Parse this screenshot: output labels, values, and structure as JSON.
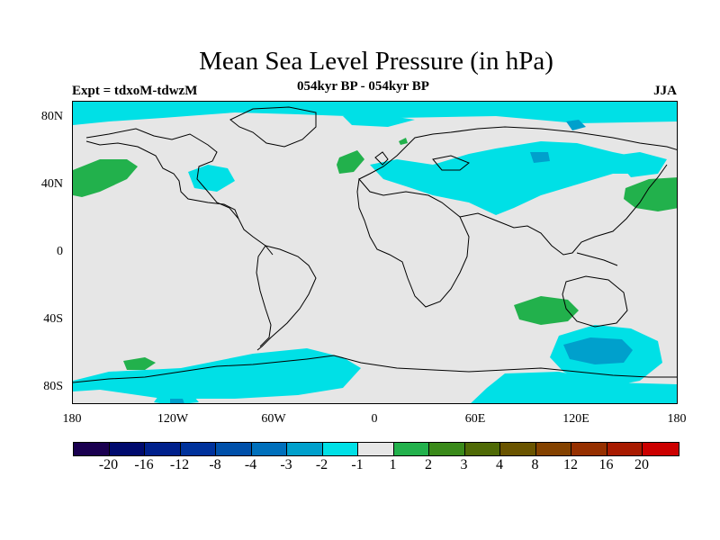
{
  "title": "Mean Sea Level Pressure (in hPa)",
  "subtitle": "054kyr BP - 054kyr BP",
  "experiment": "Expt = tdxoM-tdwzM",
  "season": "JJA",
  "lat_labels": [
    "80N",
    "40N",
    "0",
    "40S",
    "80S"
  ],
  "lon_labels": [
    "180",
    "120W",
    "60W",
    "0",
    "60E",
    "120E",
    "180"
  ],
  "colorbar": {
    "colors": [
      "#1a0050",
      "#000a6e",
      "#00208c",
      "#00329c",
      "#0050aa",
      "#0070bc",
      "#00a0cc",
      "#00e0e6",
      "#e6e6e6",
      "#22b14c",
      "#3a8a1a",
      "#4f6a06",
      "#6a5400",
      "#844200",
      "#963000",
      "#a81a00",
      "#cc0000"
    ],
    "labels": [
      "-20",
      "-16",
      "-12",
      "-8",
      "-4",
      "-3",
      "-2",
      "-1",
      "1",
      "2",
      "3",
      "4",
      "8",
      "12",
      "16",
      "20"
    ]
  },
  "colors": {
    "land_background": "#e6e6e6",
    "neg_1_to_2": "#00e0e6",
    "neg_2_to_3": "#00a0cc",
    "pos_1_to_2": "#22b14c"
  }
}
